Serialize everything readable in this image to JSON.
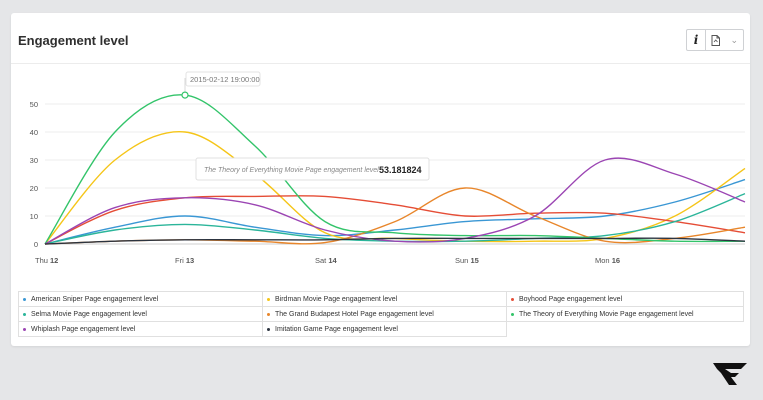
{
  "widget": {
    "title": "Engagement level",
    "info_label": "i"
  },
  "icons": {
    "info": "info-icon",
    "export": "file-export-icon",
    "dropdown": "chevron-down-icon",
    "logo": "wing-logo-icon"
  },
  "tooltips": {
    "date": "2015-02-12 19:00:00",
    "series_label": "The Theory of Everything Movie Page engagement level",
    "value": "53.181824"
  },
  "chart_data": {
    "type": "line",
    "ylim": [
      0,
      55
    ],
    "yticks": [
      0,
      10,
      20,
      30,
      40,
      50
    ],
    "x": [
      0,
      0.5,
      1,
      1.5,
      2,
      2.5,
      3,
      3.5,
      4,
      4.5,
      5
    ],
    "xticks": [
      {
        "day": "Thu",
        "num": "12"
      },
      {
        "day": "Fri",
        "num": "13"
      },
      {
        "day": "Sat",
        "num": "14"
      },
      {
        "day": "Sun",
        "num": "15"
      },
      {
        "day": "Mon",
        "num": "16"
      }
    ],
    "grid": true,
    "series": [
      {
        "name": "American Sniper Page engagement level",
        "color": "#3a97d4",
        "values": [
          0,
          6,
          10,
          6,
          3,
          5,
          8,
          9,
          10,
          15,
          23
        ]
      },
      {
        "name": "Birdman Movie Page engagement level",
        "color": "#f5c518",
        "values": [
          0,
          30,
          40,
          25,
          4,
          2,
          1,
          1,
          2,
          10,
          27
        ]
      },
      {
        "name": "Boyhood Page engagement level",
        "color": "#e54d36",
        "values": [
          0,
          12,
          16.5,
          17,
          17,
          14,
          10,
          11,
          11,
          8,
          4
        ]
      },
      {
        "name": "Selma Movie Page engagement level",
        "color": "#2bb59a",
        "values": [
          0,
          5,
          7,
          5,
          2,
          1,
          1,
          2,
          3,
          8,
          18
        ]
      },
      {
        "name": "The Grand Budapest Hotel Page engagement level",
        "color": "#e8862b",
        "values": [
          0,
          1,
          1.5,
          1,
          0.5,
          8,
          20,
          10,
          1,
          2,
          6
        ]
      },
      {
        "name": "The Theory of Everything Movie Page engagement level",
        "color": "#33c46a",
        "values": [
          0,
          40,
          53.18,
          35,
          8,
          4,
          3,
          3,
          2,
          1,
          1
        ]
      },
      {
        "name": "Whiplash Page engagement level",
        "color": "#9b45b3",
        "values": [
          0,
          13,
          16.5,
          14,
          5,
          1,
          2,
          10,
          30,
          25,
          15
        ]
      },
      {
        "name": "Imitation Game Page engagement level",
        "color": "#2c3440",
        "values": [
          0,
          1,
          1.5,
          1.5,
          1.5,
          2,
          2,
          2,
          2,
          2,
          1
        ]
      }
    ]
  },
  "legend": {
    "items": [
      {
        "label": "American Sniper Page engagement level",
        "color": "#3a97d4"
      },
      {
        "label": "Birdman Movie Page engagement level",
        "color": "#f5c518"
      },
      {
        "label": "Boyhood Page engagement level",
        "color": "#e54d36"
      },
      {
        "label": "Selma Movie Page engagement level",
        "color": "#2bb59a"
      },
      {
        "label": "The Grand Budapest Hotel Page engagement level",
        "color": "#e8862b"
      },
      {
        "label": "The Theory of Everything Movie Page engagement level",
        "color": "#33c46a"
      },
      {
        "label": "Whiplash Page engagement level",
        "color": "#9b45b3"
      },
      {
        "label": "Imitation Game Page engagement level",
        "color": "#2c3440"
      }
    ]
  }
}
